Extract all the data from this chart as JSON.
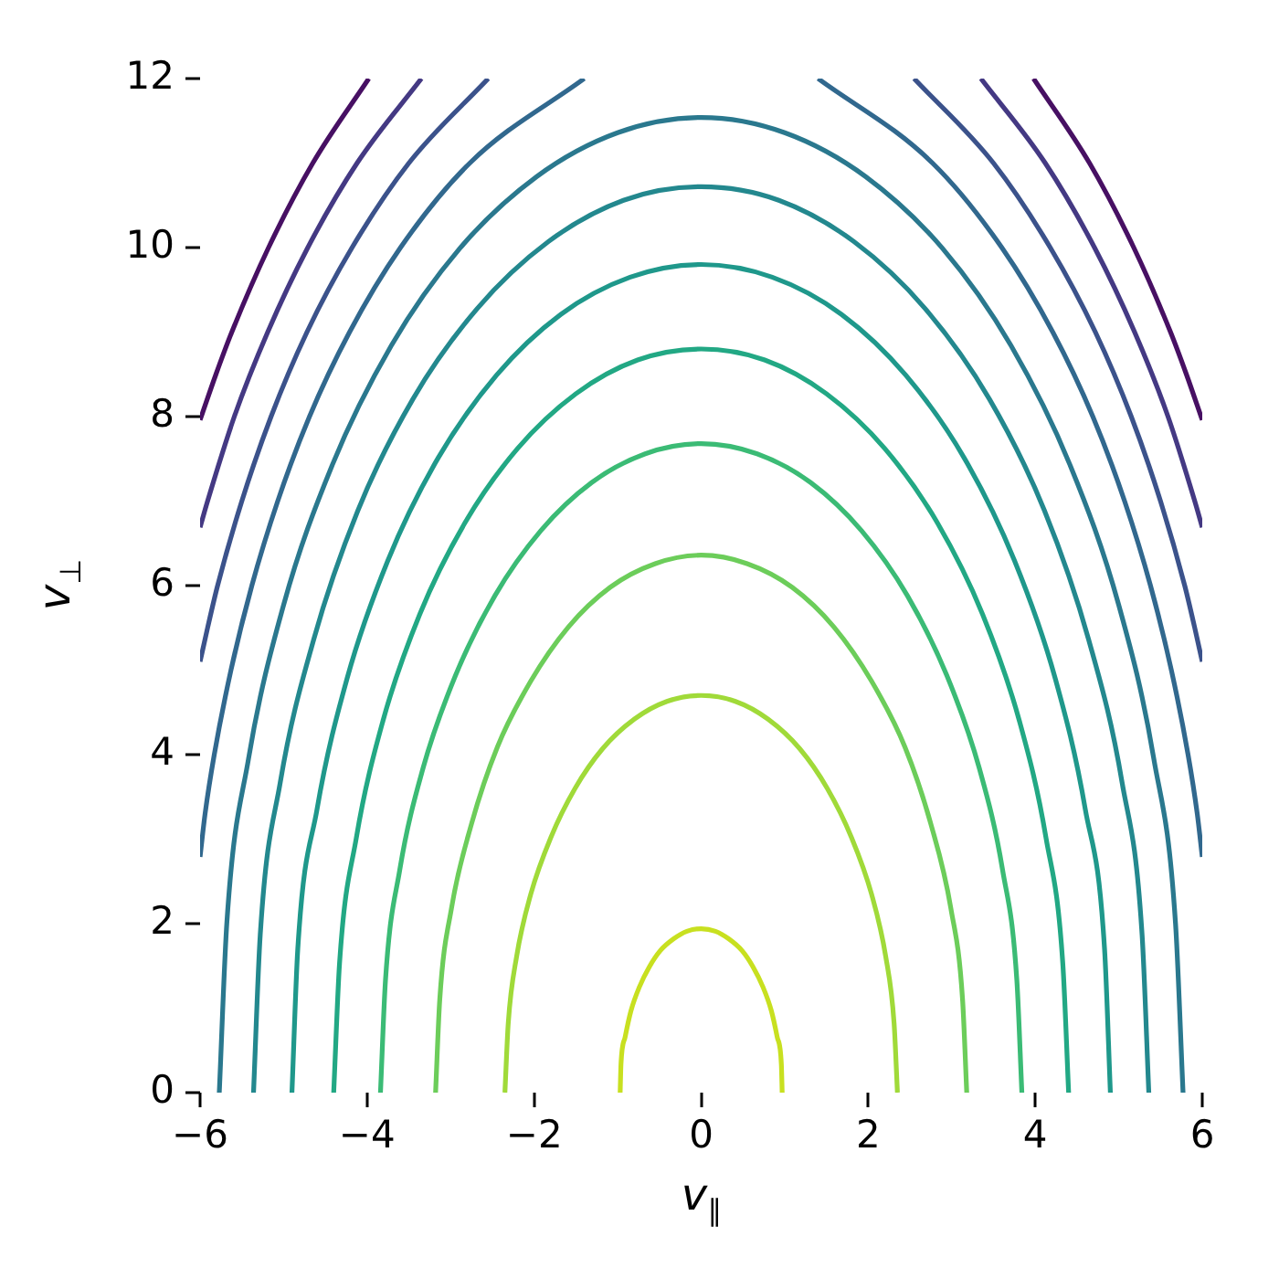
{
  "chart_data": {
    "type": "line",
    "xlabel": "v$_{∥}$",
    "ylabel": "v$_{⊥}$",
    "xlim": [
      -6,
      6
    ],
    "ylim": [
      0,
      12
    ],
    "xticks": [
      {
        "value": -6,
        "label": "−6"
      },
      {
        "value": -4,
        "label": "−4"
      },
      {
        "value": -2,
        "label": "−2"
      },
      0,
      2,
      4,
      6
    ],
    "yticks": [
      0,
      2,
      4,
      6,
      8,
      10,
      12
    ],
    "grid": false,
    "legend": false,
    "series": [
      {
        "color": "#c8e020",
        "x": [
          -0.97,
          -0.96,
          -0.91,
          -0.84,
          -0.74,
          -0.62,
          -0.49,
          -0.33,
          -0.17,
          0,
          0.17,
          0.33,
          0.49,
          0.62,
          0.74,
          0.84,
          0.91,
          0.96,
          0.97
        ],
        "values": [
          0,
          0.34,
          0.66,
          0.97,
          1.25,
          1.49,
          1.68,
          1.82,
          1.91,
          1.94,
          1.91,
          1.82,
          1.68,
          1.49,
          1.25,
          0.97,
          0.66,
          0.34,
          0
        ]
      },
      {
        "color": "#a0da39",
        "x": [
          -2.35,
          -2.31,
          -2.21,
          -2.04,
          -1.8,
          -1.51,
          -1.18,
          -0.8,
          -0.41,
          0,
          0.41,
          0.8,
          1.18,
          1.51,
          1.8,
          2.04,
          2.21,
          2.31,
          2.35
        ],
        "values": [
          0,
          0.82,
          1.61,
          2.35,
          3.02,
          3.6,
          4.07,
          4.42,
          4.63,
          4.7,
          4.63,
          4.42,
          4.07,
          3.6,
          3.02,
          2.35,
          1.61,
          0.82,
          0
        ]
      },
      {
        "color": "#6ccd5a",
        "x": [
          -3.18,
          -3.13,
          -2.99,
          -2.75,
          -2.44,
          -2.04,
          -1.59,
          -1.09,
          -0.55,
          0,
          0.55,
          1.09,
          1.59,
          2.04,
          2.44,
          2.75,
          2.99,
          3.13,
          3.18
        ],
        "values": [
          0,
          1.1,
          2.18,
          3.18,
          4.09,
          4.87,
          5.51,
          5.98,
          6.26,
          6.36,
          6.26,
          5.98,
          5.51,
          4.87,
          4.09,
          3.18,
          2.18,
          1.1,
          0
        ]
      },
      {
        "color": "#3bbb75",
        "x": [
          -3.84,
          -3.78,
          -3.61,
          -3.33,
          -2.94,
          -2.47,
          -1.92,
          -1.31,
          -0.67,
          0,
          0.67,
          1.31,
          1.92,
          2.47,
          2.94,
          3.33,
          3.61,
          3.78,
          3.84
        ],
        "values": [
          0,
          1.33,
          2.63,
          3.84,
          4.94,
          5.88,
          6.65,
          7.22,
          7.56,
          7.68,
          7.56,
          7.22,
          6.65,
          5.88,
          4.94,
          3.84,
          2.63,
          1.33,
          0
        ]
      },
      {
        "color": "#22a884",
        "x": [
          -4.4,
          -4.33,
          -4.13,
          -3.81,
          -3.37,
          -2.83,
          -2.2,
          -1.5,
          -0.76,
          0,
          0.76,
          1.5,
          2.2,
          2.83,
          3.37,
          3.81,
          4.13,
          4.33,
          4.4
        ],
        "values": [
          0,
          1.53,
          3.01,
          4.4,
          5.66,
          6.74,
          7.62,
          8.27,
          8.67,
          8.8,
          8.67,
          8.27,
          7.62,
          6.74,
          5.66,
          4.4,
          3.01,
          1.53,
          0
        ]
      },
      {
        "color": "#1f988b",
        "x": [
          -4.9,
          -4.83,
          -4.6,
          -4.24,
          -3.75,
          -3.15,
          -2.45,
          -1.68,
          -0.85,
          0,
          0.85,
          1.68,
          2.45,
          3.15,
          3.75,
          4.24,
          4.6,
          4.83,
          4.9
        ],
        "values": [
          0,
          1.7,
          3.35,
          4.9,
          6.3,
          7.51,
          8.49,
          9.21,
          9.65,
          9.8,
          9.65,
          9.21,
          8.49,
          7.51,
          6.3,
          4.9,
          3.35,
          1.7,
          0
        ]
      },
      {
        "color": "#23888e",
        "x": [
          -5.36,
          -5.28,
          -5.04,
          -4.64,
          -4.11,
          -3.45,
          -2.68,
          -1.83,
          -0.93,
          0,
          0.93,
          1.83,
          2.68,
          3.45,
          4.11,
          4.64,
          5.04,
          5.28,
          5.36
        ],
        "values": [
          0,
          1.86,
          3.67,
          5.36,
          6.89,
          8.21,
          9.28,
          10.07,
          10.56,
          10.72,
          10.56,
          10.07,
          9.28,
          8.21,
          6.89,
          5.36,
          3.67,
          1.86,
          0
        ]
      },
      {
        "color": "#2a788e",
        "x": [
          -5.77,
          -5.68,
          -5.42,
          -5,
          -4.42,
          -3.71,
          -2.89,
          -1.97,
          -1,
          0,
          1,
          1.97,
          2.89,
          3.71,
          4.42,
          5,
          5.42,
          5.68,
          5.77
        ],
        "values": [
          0,
          2,
          3.95,
          5.77,
          7.42,
          8.84,
          9.99,
          10.84,
          11.36,
          11.54,
          11.36,
          10.84,
          9.99,
          8.84,
          7.42,
          5.77,
          3.95,
          2,
          0
        ]
      },
      {
        "color": "#31688e",
        "x": [
          -6,
          -5.94,
          -5.83,
          -5.63,
          -5.38,
          -5.07,
          -4.69,
          -4.21,
          -3.6,
          -2.77,
          -1.4,
          0,
          1.4,
          2.77,
          3.6,
          4.21,
          4.69,
          5.07,
          5.38,
          5.63,
          5.83,
          5.94,
          6
        ],
        "values": [
          2.79,
          3.3,
          4,
          5,
          6,
          7,
          8,
          9,
          10,
          11,
          12,
          null,
          12,
          11,
          10,
          9,
          8,
          7,
          6,
          5,
          4,
          3.3,
          2.79
        ]
      },
      {
        "color": "#3b528b",
        "x": [
          -6,
          -5.91,
          -5.79,
          -5.5,
          -5.15,
          -4.72,
          -4.18,
          -3.5,
          -2.55,
          0,
          2.55,
          3.5,
          4.18,
          4.72,
          5.15,
          5.5,
          5.79,
          5.91,
          6
        ],
        "values": [
          5.1,
          5.5,
          6,
          7,
          8,
          9,
          10,
          11,
          12,
          null,
          12,
          11,
          10,
          9,
          8,
          7,
          6,
          5.5,
          5.1
        ]
      },
      {
        "color": "#443983",
        "x": [
          -6,
          -5.91,
          -5.59,
          -5.19,
          -4.71,
          -4.12,
          -3.35,
          0,
          3.35,
          4.12,
          4.71,
          5.19,
          5.59,
          5.91,
          6
        ],
        "values": [
          6.69,
          7,
          8,
          9,
          10,
          11,
          12,
          null,
          12,
          11,
          10,
          9,
          8,
          7,
          6.69
        ]
      },
      {
        "color": "#471063",
        "x": [
          -6,
          -5.81,
          -5.62,
          -5.18,
          -4.65,
          -3.98,
          0,
          3.98,
          4.65,
          5.18,
          5.62,
          5.81,
          6
        ],
        "values": [
          7.96,
          8.5,
          9,
          10,
          11,
          12,
          null,
          12,
          11,
          10,
          9,
          8.5,
          7.96
        ]
      }
    ]
  }
}
